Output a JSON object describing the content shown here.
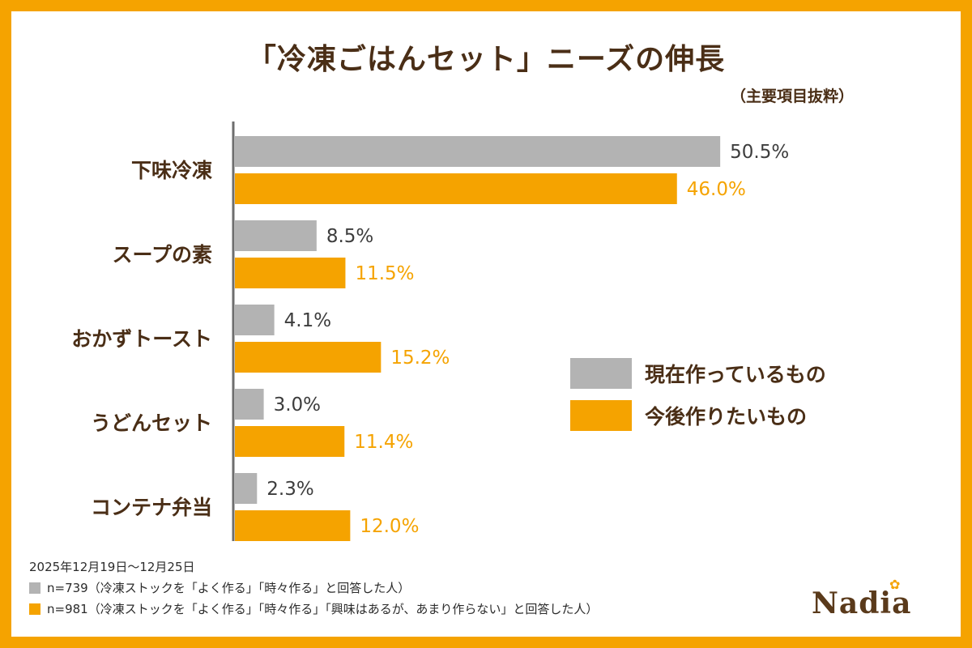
{
  "title": "「冷凍ごはんセット」ニーズの伸長",
  "subtitle": "（主要項目抜粋）",
  "colors": {
    "frame": "#f5a300",
    "series_current": "#b3b3b3",
    "series_future": "#f5a300",
    "text_brown": "#4a2e16"
  },
  "chart_data": {
    "type": "bar",
    "orientation": "horizontal",
    "categories": [
      "下味冷凍",
      "スープの素",
      "おかずトースト",
      "うどんセット",
      "コンテナ弁当"
    ],
    "series": [
      {
        "name": "現在作っているもの",
        "values": [
          50.5,
          8.5,
          4.1,
          3.0,
          2.3
        ],
        "labels": [
          "50.5%",
          "8.5%",
          "4.1%",
          "3.0%",
          "2.3%"
        ]
      },
      {
        "name": "今後作りたいもの",
        "values": [
          46.0,
          11.5,
          15.2,
          11.4,
          12.0
        ],
        "labels": [
          "46.0%",
          "11.5%",
          "15.2%",
          "11.4%",
          "12.0%"
        ]
      }
    ],
    "xlim": [
      0,
      59
    ],
    "legend": "right"
  },
  "legend": [
    {
      "label": "現在作っているもの",
      "color": "#b3b3b3"
    },
    {
      "label": "今後作りたいもの",
      "color": "#f5a300"
    }
  ],
  "footer": {
    "date": "2025年12月19日〜12月25日",
    "note_current": "n=739（冷凍ストックを「よく作る」「時々作る」と回答した人）",
    "note_future": "n=981（冷凍ストックを「よく作る」「時々作る」「興味はあるが、あまり作らない」と回答した人）"
  },
  "logo": "Nadia"
}
